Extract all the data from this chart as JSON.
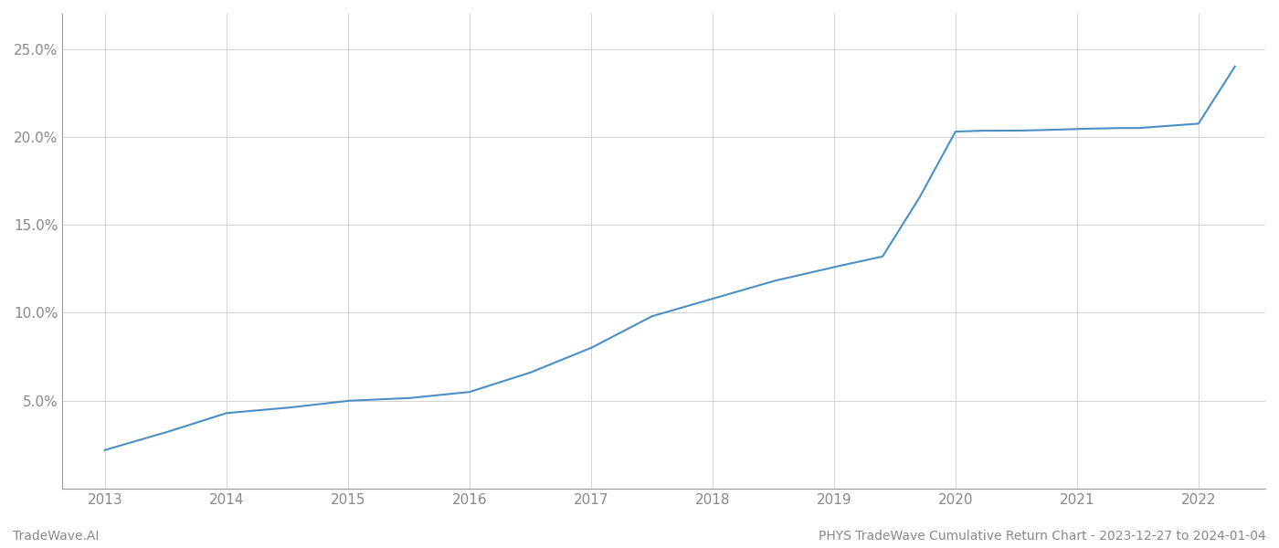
{
  "footer_left": "TradeWave.AI",
  "footer_right": "PHYS TradeWave Cumulative Return Chart - 2023-12-27 to 2024-01-04",
  "line_color": "#4a90c4",
  "background_color": "#ffffff",
  "grid_color": "#cccccc",
  "x_years": [
    2013,
    2014,
    2015,
    2016,
    2017,
    2018,
    2019,
    2020,
    2021,
    2022
  ],
  "key_x": [
    2013.0,
    2013.5,
    2014.0,
    2014.5,
    2015.0,
    2015.5,
    2016.0,
    2016.5,
    2017.0,
    2017.5,
    2018.0,
    2018.5,
    2019.0,
    2019.4,
    2019.7,
    2020.0,
    2020.2,
    2020.5,
    2020.8,
    2021.0,
    2021.3,
    2021.5,
    2021.7,
    2022.0,
    2022.3
  ],
  "key_y": [
    2.2,
    3.2,
    4.3,
    4.6,
    5.0,
    5.15,
    5.5,
    6.6,
    8.0,
    9.8,
    10.8,
    11.8,
    12.6,
    13.2,
    16.5,
    20.3,
    20.35,
    20.35,
    20.4,
    20.45,
    20.5,
    20.5,
    20.6,
    20.75,
    24.0
  ],
  "ylim": [
    0,
    27
  ],
  "yticks": [
    5.0,
    10.0,
    15.0,
    20.0,
    25.0
  ],
  "ytick_labels": [
    "5.0%",
    "10.0%",
    "15.0%",
    "20.0%",
    "25.0%"
  ],
  "xlim": [
    2012.65,
    2022.55
  ],
  "line_width": 1.5,
  "figsize": [
    14,
    6
  ],
  "dpi": 100
}
